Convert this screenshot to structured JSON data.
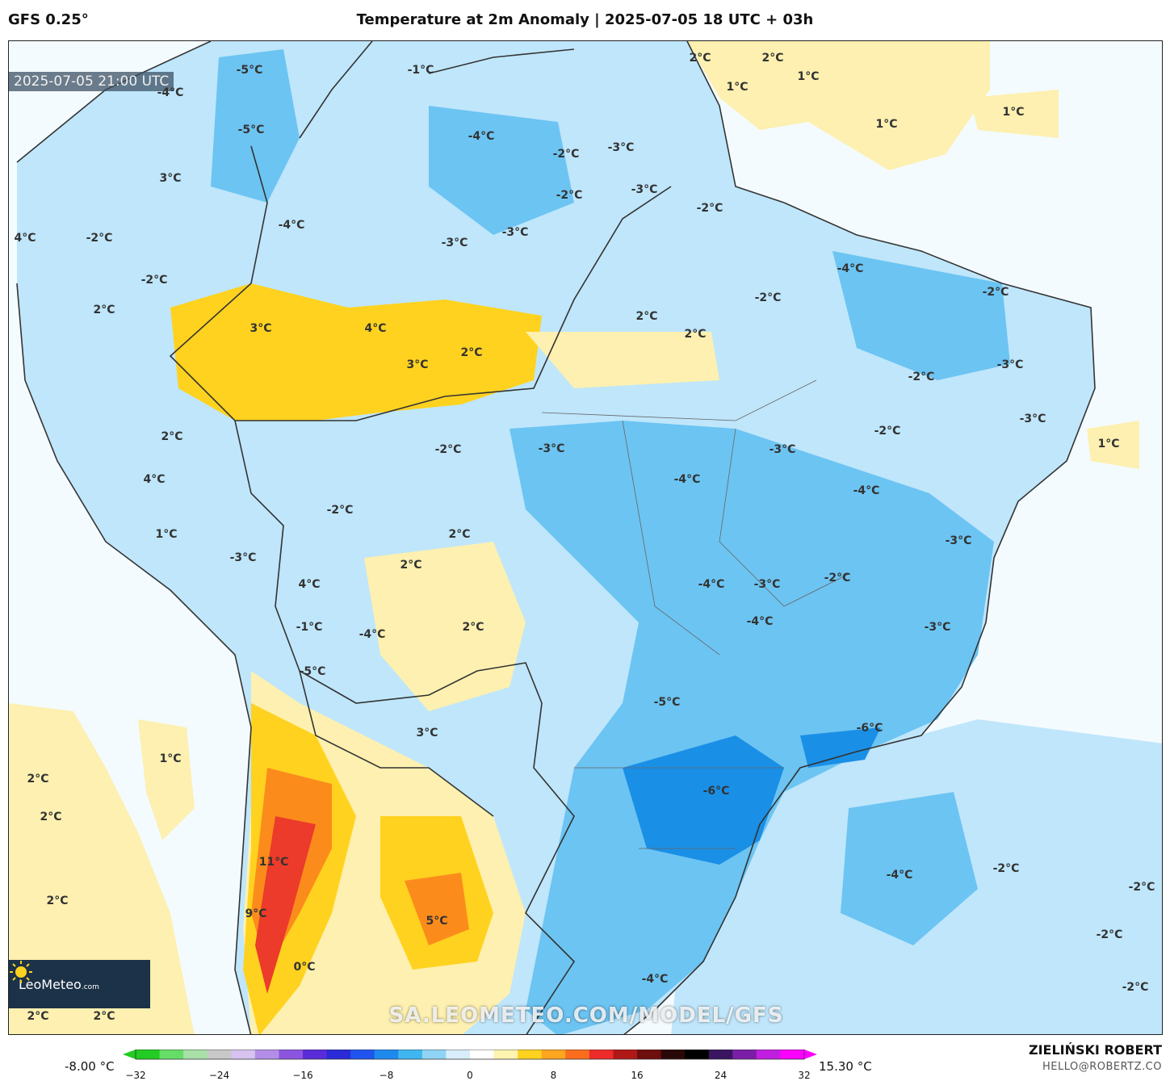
{
  "header": {
    "model": "GFS 0.25°",
    "title": "Temperature at 2m Anomaly | 2025-07-05 18 UTC + 03h"
  },
  "map": {
    "valid_time": "2025-07-05 21:00 UTC",
    "labels": [
      "-5°C",
      "-4°C",
      "-1°C",
      "2°C",
      "2°C",
      "1°C",
      "1°C",
      "1°C",
      "1°C",
      "-5°C",
      "-4°C",
      "-3°C",
      "-2°C",
      "-2°C",
      "-3°C",
      "-2°C",
      "3°C",
      "-4°C",
      "-3°C",
      "-3°C",
      "-2°C",
      "4°C",
      "-2°C",
      "-2°C",
      "-4°C",
      "2°C",
      "-2°C",
      "2°C",
      "3°C",
      "4°C",
      "3°C",
      "2°C",
      "2°C",
      "-2°C",
      "-2°C",
      "-3°C",
      "-3°C",
      "-2°C",
      "-3°C",
      "-3°C",
      "-4°C",
      "2°C",
      "1°C",
      "4°C",
      "-2°C",
      "2°C",
      "1°C",
      "-3°C",
      "2°C",
      "-4°C",
      "4°C",
      "-3°C",
      "-4°C",
      "-3°C",
      "-2°C",
      "-1°C",
      "-4°C",
      "2°C",
      "-3°C",
      "-4°C",
      "-5°C",
      "-5°C",
      "3°C",
      "-6°C",
      "1°C",
      "2°C",
      "2°C",
      "-6°C",
      "11°C",
      "2°C",
      "-4°C",
      "-2°C",
      "-2°C",
      "9°C",
      "5°C",
      "-2°C",
      "0°C",
      "-4°C",
      "-2°C",
      "2°C",
      "2°C"
    ],
    "colors": {
      "cold_strong": "#1a8fe6",
      "cold": "#6cc4f2",
      "cool": "#bfe6fb",
      "neutral": "#f4fbff",
      "warm_light": "#fdf0b0",
      "warm": "#ffd21f",
      "hot": "#fb8c1c",
      "very_hot": "#ec3b2a",
      "border": "#333333"
    },
    "logo": {
      "name": "LeoMeteo",
      "suffix": ".com",
      "icon": "sun-icon"
    },
    "watermark": "SA.LEOMETEO.COM/MODEL/GFS"
  },
  "colorbar": {
    "min_label": "-8.00 °C",
    "max_label": "15.30 °C",
    "ticks": [
      "−32",
      "−24",
      "−16",
      "−8",
      "0",
      "8",
      "16",
      "24",
      "32"
    ],
    "stops": [
      "#22cc22",
      "#66dd66",
      "#a8e0a8",
      "#c8c8c8",
      "#d6c3ee",
      "#b38ee8",
      "#8b55e0",
      "#5a2bd8",
      "#2a2ad8",
      "#1f55ee",
      "#1f8aee",
      "#3fb6f0",
      "#8fd4f4",
      "#d8eefa",
      "#ffffff",
      "#fff3b0",
      "#ffd21f",
      "#ffa51f",
      "#fb6d1c",
      "#ec2b2a",
      "#b01818",
      "#6e0e0e",
      "#2a0808",
      "#000000",
      "#3a1460",
      "#7a1ea8",
      "#c21ee0",
      "#ff00ff"
    ]
  },
  "credits": {
    "author": "ZIELIŃSKI ROBERT",
    "email": "HELLO@ROBERTZ.CO"
  }
}
